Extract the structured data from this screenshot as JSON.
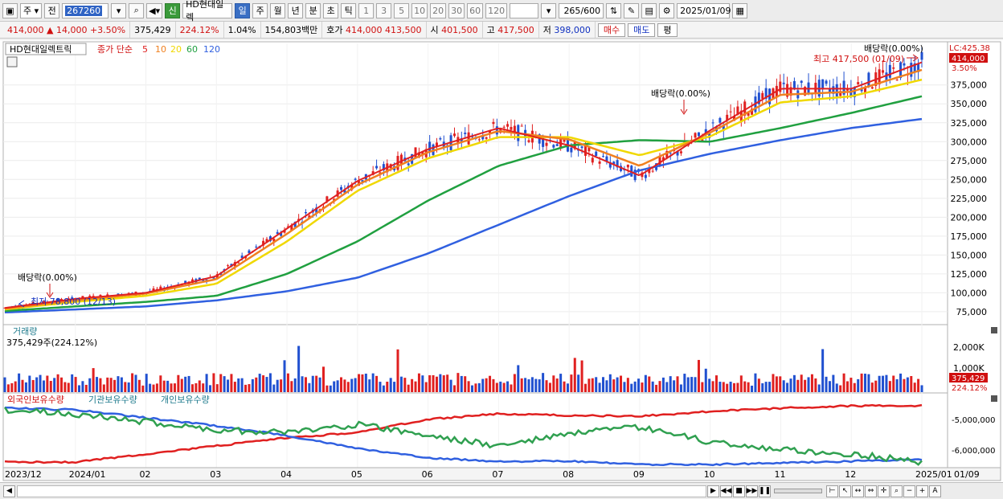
{
  "toolbar": {
    "period_type": "주",
    "prev_label": "전",
    "stock_code": "267260",
    "badge": "신",
    "stock_name": "HD현대일렉",
    "periods": [
      "일",
      "주",
      "월",
      "년",
      "분",
      "초",
      "틱"
    ],
    "active_period": "일",
    "minute_options": [
      "1",
      "3",
      "5",
      "10",
      "20",
      "30",
      "60",
      "120"
    ],
    "count": "265",
    "count_total": "/600",
    "date": "2025/01/09"
  },
  "quote": {
    "price": "414,000",
    "change": "14,000",
    "change_pct": "+3.50%",
    "volume": "375,429",
    "volume_ratio": "224.12%",
    "turnover_pct": "1.04%",
    "amount": "154,803백만",
    "bid_label": "호가",
    "ask_price": "414,000",
    "bid_price": "413,500",
    "open_label": "시",
    "open": "401,500",
    "high_label": "고",
    "high": "417,500",
    "low_label": "저",
    "low": "398,000",
    "buy_label": "매수",
    "sell_label": "매도",
    "eval_label": "평"
  },
  "legend": {
    "name": "HD현대일렉트릭",
    "close_label": "종가 단순",
    "ma": [
      {
        "label": "5",
        "color": "#e02020"
      },
      {
        "label": "10",
        "color": "#f08020"
      },
      {
        "label": "20",
        "color": "#f0d800"
      },
      {
        "label": "60",
        "color": "#20a040"
      },
      {
        "label": "120",
        "color": "#3060e0"
      }
    ]
  },
  "price_axis": {
    "lc_label": "LC:425.38",
    "last_price": "414,000",
    "last_pct": "3.50%",
    "ticks": [
      "375,000",
      "350,000",
      "325,000",
      "300,000",
      "275,000",
      "250,000",
      "225,000",
      "200,000",
      "175,000",
      "150,000",
      "125,000",
      "100,000",
      "75,000"
    ]
  },
  "annotations": {
    "dividend_1": "배당락(0.00%)",
    "dividend_2": "배당락(0.00%)",
    "dividend_3": "배당락(0.00%)",
    "high_note": "최고 417,500 (01/09)",
    "low_note": "최저 78,800 (12/13)"
  },
  "volume_panel": {
    "title": "거래량",
    "value": "375,429주(224.12%)",
    "ticks": [
      "2,000K",
      "1,000K"
    ],
    "last_value": "375,429",
    "last_pct": "224.12%"
  },
  "holdings_panel": {
    "legend": [
      "외국인보유수량",
      "기관보유수량",
      "개인보유수량"
    ],
    "colors": [
      "#e02020",
      "#3060e0",
      "#30a050"
    ],
    "ticks": [
      "-5,000,000",
      "-6,000,000"
    ]
  },
  "x_axis": {
    "labels": [
      "2023/12",
      "2024/01",
      "02",
      "03",
      "04",
      "05",
      "06",
      "07",
      "08",
      "09",
      "10",
      "11",
      "12",
      "2025/01"
    ],
    "end_label": "01/09"
  },
  "chart_data": {
    "type": "line",
    "title": "HD현대일렉트릭",
    "x": [
      "2023/12",
      "2024/01",
      "02",
      "03",
      "04",
      "05",
      "06",
      "07",
      "08",
      "09",
      "10",
      "11",
      "12",
      "2025/01"
    ],
    "series": [
      {
        "name": "5",
        "values": [
          80000,
          92000,
          100000,
          122000,
          185000,
          248000,
          290000,
          318000,
          295000,
          255000,
          315000,
          370000,
          370000,
          405000
        ]
      },
      {
        "name": "10",
        "values": [
          79000,
          90000,
          99000,
          118000,
          178000,
          243000,
          286000,
          314000,
          303000,
          268000,
          312000,
          362000,
          366000,
          395000
        ]
      },
      {
        "name": "20",
        "values": [
          78000,
          88000,
          96000,
          112000,
          168000,
          235000,
          278000,
          306000,
          306000,
          282000,
          307000,
          352000,
          360000,
          382000
        ]
      },
      {
        "name": "60",
        "values": [
          76000,
          82000,
          88000,
          96000,
          125000,
          168000,
          222000,
          268000,
          295000,
          302000,
          300000,
          318000,
          338000,
          360000
        ]
      },
      {
        "name": "120",
        "values": [
          74000,
          78000,
          82000,
          90000,
          102000,
          120000,
          152000,
          190000,
          228000,
          262000,
          284000,
          302000,
          318000,
          330000
        ]
      }
    ],
    "ylim": [
      60000,
      430000
    ]
  }
}
